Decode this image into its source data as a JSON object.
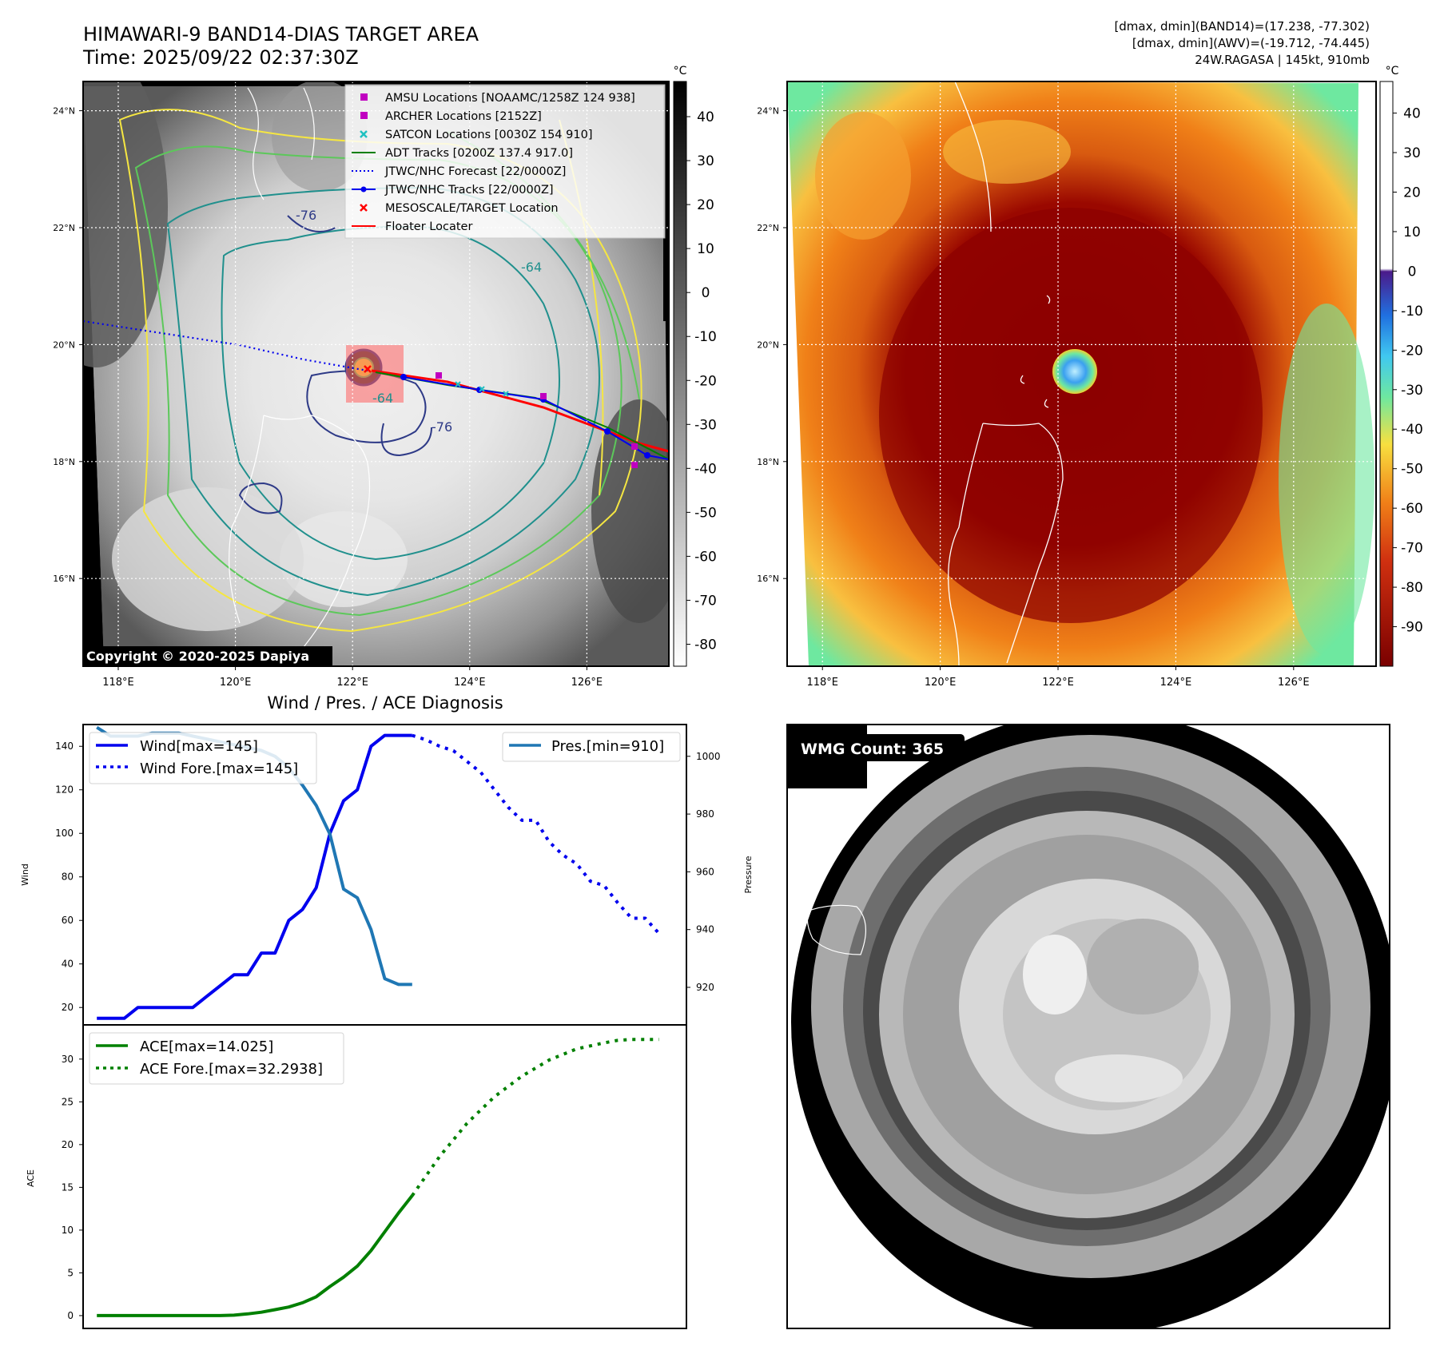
{
  "header": {
    "title_line1": "HIMAWARI-9 BAND14-DIAS TARGET AREA",
    "title_line2": "Time: 2025/09/22 02:37:30Z",
    "info_line1": "[dmax, dmin](BAND14)=(17.238, -77.302)",
    "info_line2": "[dmax, dmin](AWV)=(-19.712, -74.445)",
    "info_line3": "24W.RAGASA | 145kt, 910mb"
  },
  "colors": {
    "wind": "#0000ee",
    "pressure": "#1f77b4",
    "ace": "#008000",
    "contour_yellow": "#f5e642",
    "contour_green": "#5cc85a",
    "contour_teal": "#20908d",
    "contour_navy": "#2e3a87",
    "track_red": "#ff0000",
    "awv_dark": "#8b0000",
    "awv_orange": "#f08018",
    "awv_green": "#6ee8a0"
  },
  "map_left": {
    "units": "°C",
    "lon_ticks": [
      "118°E",
      "120°E",
      "122°E",
      "124°E",
      "126°E"
    ],
    "lat_ticks": [
      "24°N",
      "22°N",
      "20°N",
      "18°N",
      "16°N"
    ],
    "lon_range": [
      117.4,
      127.4
    ],
    "lat_range": [
      14.5,
      24.5
    ],
    "colorbar_ticks": [
      40,
      30,
      20,
      10,
      0,
      -10,
      -20,
      -30,
      -40,
      -50,
      -60,
      -70,
      -80
    ],
    "colorbar_range": [
      -85,
      48
    ],
    "contour_labels": [
      "-76",
      "-64",
      "-76",
      "-64",
      "-76",
      "-64"
    ],
    "legend": [
      {
        "label": "AMSU Locations [NOAAMC/1258Z 124 938]",
        "marker": "square",
        "color": "#c000c0"
      },
      {
        "label": "ARCHER Locations [2152Z]",
        "marker": "square",
        "color": "#c000c0"
      },
      {
        "label": "SATCON Locations [0030Z 154 910]",
        "marker": "x",
        "color": "#20c0c0"
      },
      {
        "label": "ADT Tracks [0200Z 137.4 917.0]",
        "marker": "line",
        "color": "#008000"
      },
      {
        "label": "JTWC/NHC Forecast [22/0000Z]",
        "marker": "dotted",
        "color": "#0000ee"
      },
      {
        "label": "JTWC/NHC Tracks [22/0000Z]",
        "marker": "line-dot",
        "color": "#0000ee"
      },
      {
        "label": "MESOSCALE/TARGET Location",
        "marker": "x",
        "color": "#ff0000"
      },
      {
        "label": "Floater Locater",
        "marker": "line",
        "color": "#ff0000"
      }
    ],
    "copyright": "Copyright © 2020-2025 Dapiya"
  },
  "map_right": {
    "units": "°C",
    "lon_ticks": [
      "118°E",
      "120°E",
      "122°E",
      "124°E",
      "126°E"
    ],
    "lat_ticks": [
      "24°N",
      "22°N",
      "20°N",
      "18°N",
      "16°N"
    ],
    "colorbar_ticks": [
      40,
      30,
      20,
      10,
      0,
      -10,
      -20,
      -30,
      -40,
      -50,
      -60,
      -70,
      -80,
      -90
    ],
    "colorbar_range": [
      -100,
      48
    ]
  },
  "diagnosis": {
    "title": "Wind / Pres. / ACE Diagnosis",
    "wind_ylabel": "Wind",
    "pres_ylabel": "Pressure",
    "ace_ylabel": "ACE",
    "wind_yticks": [
      20,
      40,
      60,
      80,
      100,
      120,
      140
    ],
    "pres_yticks": [
      920,
      940,
      960,
      980,
      1000
    ],
    "ace_yticks": [
      0,
      5,
      10,
      15,
      20,
      25,
      30
    ],
    "legend_wind": "Wind[max=145]",
    "legend_wind_fore": "Wind Fore.[max=145]",
    "legend_pres": "Pres.[min=910]",
    "legend_ace": "ACE[max=14.025]",
    "legend_ace_fore": "ACE Fore.[max=32.2938]"
  },
  "chart_data": [
    {
      "type": "line",
      "title": "Wind / Pres. / ACE Diagnosis",
      "ylabel": "Wind",
      "ylim": [
        12,
        150
      ],
      "xlim": [
        -1,
        43
      ],
      "series": [
        {
          "name": "Wind[max=145]",
          "style": "solid",
          "x": [
            0,
            2,
            3,
            4,
            5,
            6,
            7,
            8,
            9,
            10,
            11,
            12,
            13,
            14,
            15,
            16,
            17,
            18,
            19,
            20,
            21,
            22,
            23
          ],
          "y": [
            15,
            15,
            20,
            20,
            20,
            20,
            20,
            25,
            30,
            35,
            35,
            45,
            45,
            60,
            65,
            75,
            100,
            115,
            120,
            140,
            145,
            145,
            145
          ]
        },
        {
          "name": "Wind Fore.[max=145]",
          "style": "dotted",
          "x": [
            23,
            24,
            25,
            26,
            27,
            28,
            29,
            30,
            31,
            32,
            33,
            34,
            35,
            36,
            37,
            38,
            39,
            40,
            41
          ],
          "y": [
            145,
            143,
            140,
            138,
            133,
            128,
            120,
            112,
            106,
            106,
            96,
            90,
            86,
            78,
            76,
            68,
            61,
            61,
            54
          ]
        }
      ]
    },
    {
      "type": "line",
      "ylabel": "Pressure",
      "ylim": [
        907,
        1011
      ],
      "series": [
        {
          "name": "Pres.[min=910]",
          "style": "solid",
          "x": [
            0,
            1,
            2,
            3,
            4,
            5,
            6,
            7,
            8,
            9,
            10,
            11,
            12,
            13,
            14,
            15,
            16,
            17,
            18,
            19,
            20,
            21,
            22,
            23
          ],
          "y": [
            1010,
            1007,
            1007,
            1007,
            1008,
            1008,
            1008,
            1007,
            1006,
            1005,
            1004,
            1003,
            1002,
            1000,
            996,
            990,
            983,
            973,
            954,
            951,
            940,
            923,
            921,
            921
          ]
        }
      ]
    },
    {
      "type": "line",
      "ylabel": "ACE",
      "ylim": [
        -1.5,
        34
      ],
      "xlim": [
        -1,
        43
      ],
      "series": [
        {
          "name": "ACE[max=14.025]",
          "style": "solid",
          "x": [
            0,
            2,
            4,
            6,
            8,
            9,
            10,
            11,
            12,
            13,
            14,
            15,
            16,
            17,
            18,
            19,
            20,
            21,
            22,
            23
          ],
          "y": [
            0,
            0,
            0,
            0,
            0,
            0,
            0.05,
            0.2,
            0.4,
            0.7,
            1.0,
            1.5,
            2.2,
            3.4,
            4.5,
            5.8,
            7.6,
            9.8,
            12.0,
            14.025
          ]
        },
        {
          "name": "ACE Fore.[max=32.2938]",
          "style": "dotted",
          "x": [
            23,
            25,
            27,
            29,
            31,
            33,
            35,
            37,
            38,
            39,
            40,
            41
          ],
          "y": [
            14.025,
            18.6,
            22.5,
            25.6,
            28.0,
            29.9,
            31.2,
            31.9,
            32.2,
            32.29,
            32.29,
            32.29
          ]
        }
      ]
    }
  ],
  "wmg": {
    "label": "WMG Count: 365"
  }
}
